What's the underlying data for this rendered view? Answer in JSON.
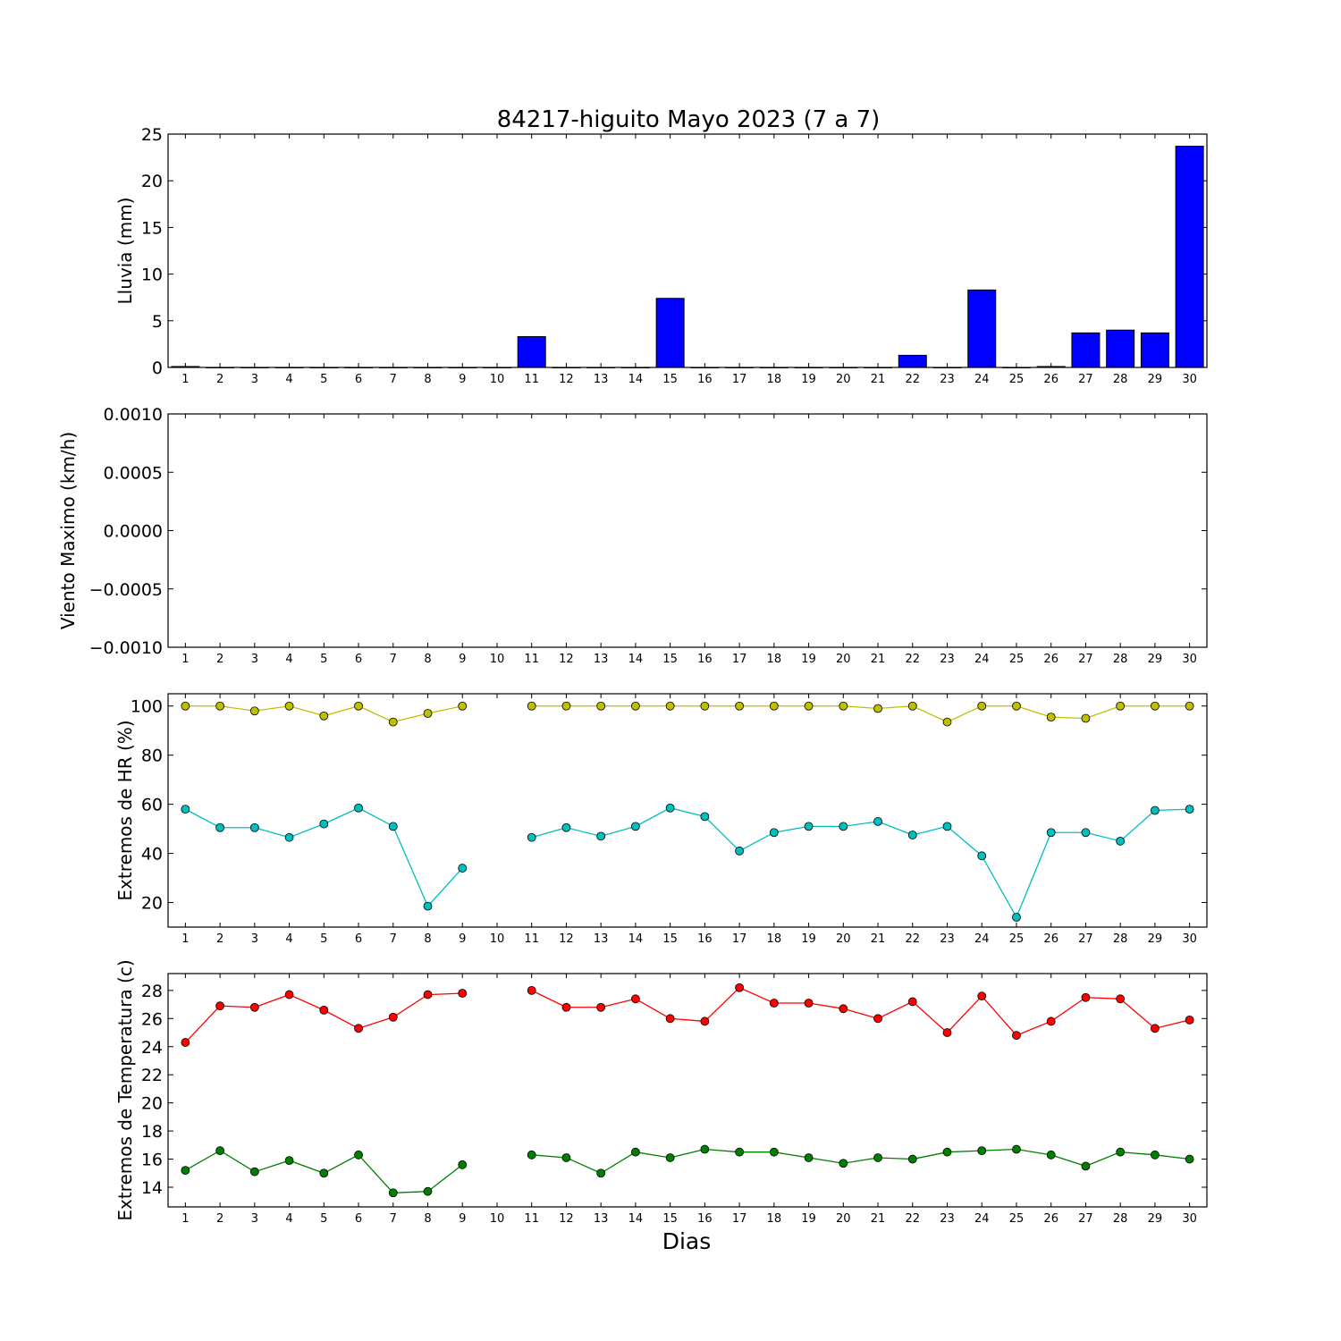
{
  "title": "84217-higuito Mayo 2023  (7 a 7)",
  "xlabel": "Dias",
  "colors": {
    "bar": "#0000ff",
    "hr_max": "#bfbf00",
    "hr_min": "#00bfbf",
    "temp_max": "#ff0000",
    "temp_min": "#008000"
  },
  "chart_data": [
    {
      "type": "bar",
      "ylabel": "Lluvia (mm)",
      "categories": [
        1,
        2,
        3,
        4,
        5,
        6,
        7,
        8,
        9,
        10,
        11,
        12,
        13,
        14,
        15,
        16,
        17,
        18,
        19,
        20,
        21,
        22,
        23,
        24,
        25,
        26,
        27,
        28,
        29,
        30
      ],
      "values": [
        0.1,
        0,
        0,
        0,
        0,
        0,
        0,
        0,
        0,
        0,
        3.3,
        0,
        0,
        0,
        7.4,
        0,
        0,
        0,
        0,
        0,
        0,
        1.3,
        0,
        8.3,
        0,
        0.1,
        3.7,
        4.0,
        3.7,
        23.7
      ],
      "ylim": [
        0,
        25
      ],
      "yticks": [
        "0",
        "5",
        "10",
        "15",
        "20",
        "25"
      ]
    },
    {
      "type": "line",
      "ylabel": "Viento Maximo (km/h)",
      "categories": [
        1,
        2,
        3,
        4,
        5,
        6,
        7,
        8,
        9,
        10,
        11,
        12,
        13,
        14,
        15,
        16,
        17,
        18,
        19,
        20,
        21,
        22,
        23,
        24,
        25,
        26,
        27,
        28,
        29,
        30
      ],
      "series": [],
      "ylim": [
        -0.001,
        0.001
      ],
      "yticks": [
        "−0.0010",
        "−0.0005",
        "0.0000",
        "0.0005",
        "0.0010"
      ]
    },
    {
      "type": "line",
      "ylabel": "Extremos de HR (%)",
      "categories": [
        1,
        2,
        3,
        4,
        5,
        6,
        7,
        8,
        9,
        10,
        11,
        12,
        13,
        14,
        15,
        16,
        17,
        18,
        19,
        20,
        21,
        22,
        23,
        24,
        25,
        26,
        27,
        28,
        29,
        30
      ],
      "series": [
        {
          "values": [
            100,
            100,
            98,
            100,
            96,
            100,
            93.5,
            97,
            100,
            null,
            100,
            100,
            100,
            100,
            100,
            100,
            100,
            100,
            100,
            100,
            99,
            100,
            93.5,
            100,
            100,
            95.5,
            95,
            100,
            100,
            100
          ]
        },
        {
          "values": [
            58,
            50.5,
            50.5,
            46.5,
            52,
            58.5,
            51,
            18.5,
            34,
            null,
            46.5,
            50.5,
            47,
            51,
            58.5,
            55,
            41,
            48.5,
            51,
            51,
            53,
            47.5,
            51,
            39,
            14,
            48.5,
            48.5,
            45,
            57.5,
            58
          ]
        }
      ],
      "ylim": [
        10,
        105
      ],
      "yticks": [
        "20",
        "40",
        "60",
        "80",
        "100"
      ]
    },
    {
      "type": "line",
      "ylabel": "Extremos de Temperatura (c)",
      "categories": [
        1,
        2,
        3,
        4,
        5,
        6,
        7,
        8,
        9,
        10,
        11,
        12,
        13,
        14,
        15,
        16,
        17,
        18,
        19,
        20,
        21,
        22,
        23,
        24,
        25,
        26,
        27,
        28,
        29,
        30
      ],
      "series": [
        {
          "values": [
            24.3,
            26.9,
            26.8,
            27.7,
            26.6,
            25.3,
            26.1,
            27.7,
            27.8,
            null,
            28.0,
            26.8,
            26.8,
            27.4,
            26.0,
            25.8,
            28.2,
            27.1,
            27.1,
            26.7,
            26.0,
            27.2,
            25.0,
            27.6,
            24.8,
            25.8,
            27.5,
            27.4,
            25.3,
            25.9
          ]
        },
        {
          "values": [
            15.2,
            16.6,
            15.1,
            15.9,
            15.0,
            16.3,
            13.6,
            13.7,
            15.6,
            null,
            16.3,
            16.1,
            15.0,
            16.5,
            16.1,
            16.7,
            16.5,
            16.5,
            16.1,
            15.7,
            16.1,
            16.0,
            16.5,
            16.6,
            16.7,
            16.3,
            15.5,
            16.5,
            16.3,
            16.0
          ]
        }
      ],
      "ylim": [
        12.6,
        29.2
      ],
      "yticks": [
        "14",
        "16",
        "18",
        "20",
        "22",
        "24",
        "26",
        "28"
      ]
    }
  ]
}
